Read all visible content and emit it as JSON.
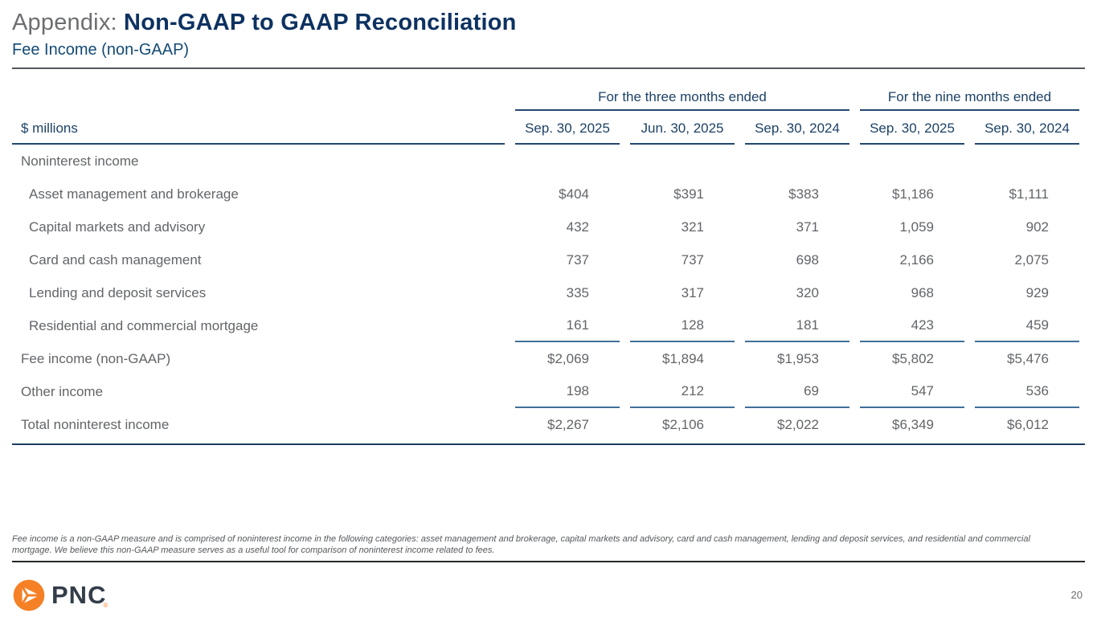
{
  "slide": {
    "title_prefix": "Appendix: ",
    "title": "Non-GAAP to GAAP Reconciliation",
    "subtitle": "Fee Income (non-GAAP)",
    "page_number": "20"
  },
  "table": {
    "unit_label": "$ millions",
    "group_headers": [
      "For the three months ended",
      "For the nine months ended"
    ],
    "column_headers": [
      "Sep. 30, 2025",
      "Jun. 30, 2025",
      "Sep. 30, 2024",
      "Sep. 30, 2025",
      "Sep. 30, 2024"
    ],
    "rows": [
      {
        "label": "Noninterest income",
        "indent": false,
        "rule_below": false,
        "values": [
          "",
          "",
          "",
          "",
          ""
        ]
      },
      {
        "label": "Asset management and brokerage",
        "indent": true,
        "rule_below": false,
        "values": [
          "$404",
          "$391",
          "$383",
          "$1,186",
          "$1,111"
        ]
      },
      {
        "label": "Capital markets and advisory",
        "indent": true,
        "rule_below": false,
        "values": [
          "432",
          "321",
          "371",
          "1,059",
          "902"
        ]
      },
      {
        "label": "Card and cash management",
        "indent": true,
        "rule_below": false,
        "values": [
          "737",
          "737",
          "698",
          "2,166",
          "2,075"
        ]
      },
      {
        "label": "Lending and deposit services",
        "indent": true,
        "rule_below": false,
        "values": [
          "335",
          "317",
          "320",
          "968",
          "929"
        ]
      },
      {
        "label": "Residential and commercial mortgage",
        "indent": true,
        "rule_below": true,
        "values": [
          "161",
          "128",
          "181",
          "423",
          "459"
        ]
      },
      {
        "label": "Fee income (non-GAAP)",
        "indent": false,
        "rule_below": false,
        "values": [
          "$2,069",
          "$1,894",
          "$1,953",
          "$5,802",
          "$5,476"
        ]
      },
      {
        "label": "Other income",
        "indent": false,
        "rule_below": true,
        "values": [
          "198",
          "212",
          "69",
          "547",
          "536"
        ]
      },
      {
        "label": "Total noninterest income",
        "indent": false,
        "rule_below": false,
        "values": [
          "$2,267",
          "$2,106",
          "$2,022",
          "$6,349",
          "$6,012"
        ]
      }
    ]
  },
  "footnote": "Fee income is a non-GAAP measure and is comprised of noninterest income in the following categories: asset management and brokerage, capital markets and advisory, card and cash management, lending and deposit services, and residential and commercial mortgage. We believe this non-GAAP measure serves as a useful tool for comparison of noninterest income related to fees.",
  "brand": {
    "logo_text": "PNC",
    "registered_mark": "®",
    "orange": "#F58025",
    "navy": "#0d3261"
  }
}
